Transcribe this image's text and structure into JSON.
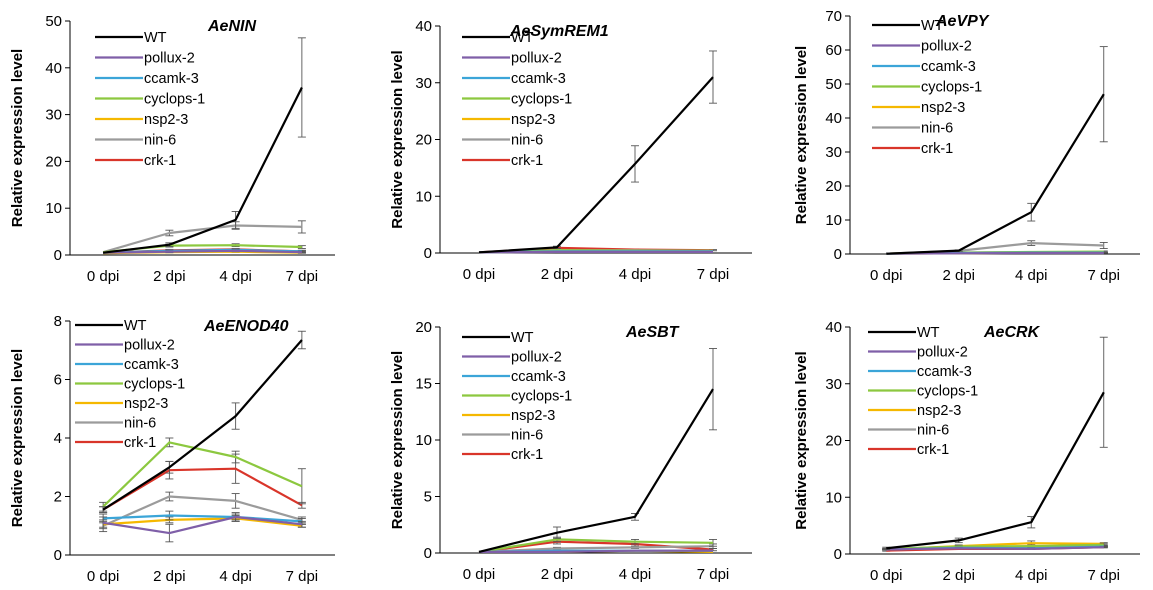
{
  "chart_data": [
    {
      "type": "line",
      "title": "AeNIN",
      "ylabel": "Relative expression level",
      "categories": [
        "0 dpi",
        "2 dpi",
        "4 dpi",
        "7 dpi"
      ],
      "ylim": [
        0,
        50
      ],
      "yticks": [
        0,
        10,
        20,
        30,
        40,
        50
      ],
      "legend_position": "top-left",
      "series": [
        {
          "name": "WT",
          "color": "#000000",
          "values": [
            0.5,
            2.2,
            7.5,
            35.8
          ],
          "errors": [
            0,
            0.4,
            1.8,
            10.6
          ]
        },
        {
          "name": "pollux-2",
          "color": "#7f5fa8",
          "values": [
            0.5,
            0.7,
            0.9,
            0.6
          ],
          "errors": [
            0,
            0.2,
            0.2,
            0.2
          ]
        },
        {
          "name": "ccamk-3",
          "color": "#3ba5d8",
          "values": [
            0.5,
            0.9,
            1.1,
            0.8
          ],
          "errors": [
            0,
            0.2,
            0.2,
            0.2
          ]
        },
        {
          "name": "cyclops-1",
          "color": "#8cc83f",
          "values": [
            0.6,
            2.0,
            2.1,
            1.7
          ],
          "errors": [
            0,
            0.3,
            0.3,
            0.3
          ]
        },
        {
          "name": "nsp2-3",
          "color": "#f5b800",
          "values": [
            0.4,
            0.6,
            0.7,
            0.5
          ],
          "errors": [
            0,
            0.1,
            0.1,
            0.1
          ]
        },
        {
          "name": "nin-6",
          "color": "#9b9b9b",
          "values": [
            0.6,
            4.7,
            6.3,
            6.0
          ],
          "errors": [
            0,
            0.6,
            0.8,
            1.3
          ]
        },
        {
          "name": "crk-1",
          "color": "#d9352a",
          "values": [
            0.5,
            1.0,
            1.2,
            0.8
          ],
          "errors": [
            0,
            0.2,
            0.2,
            0.2
          ]
        }
      ]
    },
    {
      "type": "line",
      "title": "AeSymREM1",
      "ylabel": "Relative expression level",
      "categories": [
        "0 dpi",
        "2 dpi",
        "4 dpi",
        "7 dpi"
      ],
      "ylim": [
        0,
        40
      ],
      "yticks": [
        0,
        10,
        20,
        30,
        40
      ],
      "legend_position": "top-left",
      "series": [
        {
          "name": "WT",
          "color": "#000000",
          "values": [
            0.1,
            1.0,
            15.7,
            31.0
          ],
          "errors": [
            0,
            0.2,
            3.2,
            4.6
          ]
        },
        {
          "name": "pollux-2",
          "color": "#7f5fa8",
          "values": [
            0.1,
            0.2,
            0.2,
            0.2
          ],
          "errors": [
            0,
            0,
            0,
            0
          ]
        },
        {
          "name": "ccamk-3",
          "color": "#3ba5d8",
          "values": [
            0.1,
            0.3,
            0.3,
            0.3
          ],
          "errors": [
            0,
            0,
            0,
            0
          ]
        },
        {
          "name": "cyclops-1",
          "color": "#8cc83f",
          "values": [
            0.1,
            0.5,
            0.4,
            0.4
          ],
          "errors": [
            0,
            0,
            0,
            0
          ]
        },
        {
          "name": "nsp2-3",
          "color": "#f5b800",
          "values": [
            0.1,
            0.3,
            0.3,
            0.3
          ],
          "errors": [
            0,
            0,
            0,
            0
          ]
        },
        {
          "name": "nin-6",
          "color": "#9b9b9b",
          "values": [
            0.1,
            0.5,
            0.5,
            0.4
          ],
          "errors": [
            0,
            0,
            0,
            0
          ]
        },
        {
          "name": "crk-1",
          "color": "#d9352a",
          "values": [
            0.1,
            0.9,
            0.6,
            0.5
          ],
          "errors": [
            0,
            0.1,
            0.1,
            0.1
          ]
        }
      ]
    },
    {
      "type": "line",
      "title": "AeVPY",
      "ylabel": "Relative expression level",
      "categories": [
        "0 dpi",
        "2 dpi",
        "4 dpi",
        "7 dpi"
      ],
      "ylim": [
        0,
        70
      ],
      "yticks": [
        0,
        10,
        20,
        30,
        40,
        50,
        60,
        70
      ],
      "legend_position": "top-left",
      "series": [
        {
          "name": "WT",
          "color": "#000000",
          "values": [
            0.1,
            1.0,
            12.3,
            47.0
          ],
          "errors": [
            0,
            0.2,
            2.6,
            14.0
          ]
        },
        {
          "name": "pollux-2",
          "color": "#7f5fa8",
          "values": [
            0.1,
            0.2,
            0.3,
            0.3
          ],
          "errors": [
            0,
            0,
            0.1,
            0.1
          ]
        },
        {
          "name": "ccamk-3",
          "color": "#3ba5d8",
          "values": [
            0.1,
            0.3,
            0.4,
            0.4
          ],
          "errors": [
            0,
            0,
            0.1,
            0.1
          ]
        },
        {
          "name": "cyclops-1",
          "color": "#8cc83f",
          "values": [
            0.1,
            0.4,
            0.6,
            0.7
          ],
          "errors": [
            0,
            0.1,
            0.1,
            0.2
          ]
        },
        {
          "name": "nsp2-3",
          "color": "#f5b800",
          "values": [
            0.1,
            0.2,
            0.4,
            0.4
          ],
          "errors": [
            0,
            0,
            0.1,
            0.1
          ]
        },
        {
          "name": "nin-6",
          "color": "#9b9b9b",
          "values": [
            0.1,
            0.9,
            3.2,
            2.5
          ],
          "errors": [
            0,
            0.2,
            0.7,
            0.9
          ]
        },
        {
          "name": "crk-1",
          "color": "#d9352a",
          "values": [
            0.1,
            0.4,
            0.5,
            0.5
          ],
          "errors": [
            0,
            0.1,
            0.1,
            0.1
          ]
        }
      ]
    },
    {
      "type": "line",
      "title": "AeENOD40",
      "ylabel": "Relative expression level",
      "categories": [
        "0 dpi",
        "2 dpi",
        "4 dpi",
        "7 dpi"
      ],
      "ylim": [
        0,
        8
      ],
      "yticks": [
        0,
        2,
        4,
        6,
        8
      ],
      "legend_position": "top-left",
      "series": [
        {
          "name": "WT",
          "color": "#000000",
          "values": [
            1.55,
            3.0,
            4.75,
            7.35
          ],
          "errors": [
            0.1,
            0.2,
            0.45,
            0.3
          ]
        },
        {
          "name": "pollux-2",
          "color": "#7f5fa8",
          "values": [
            1.1,
            0.75,
            1.3,
            1.05
          ],
          "errors": [
            0.2,
            0.3,
            0.15,
            0.1
          ]
        },
        {
          "name": "ccamk-3",
          "color": "#3ba5d8",
          "values": [
            1.25,
            1.35,
            1.3,
            1.15
          ],
          "errors": [
            0.15,
            0.15,
            0.1,
            0.1
          ]
        },
        {
          "name": "cyclops-1",
          "color": "#8cc83f",
          "values": [
            1.65,
            3.85,
            3.35,
            2.35
          ],
          "errors": [
            0.15,
            0.15,
            0.2,
            0.6
          ]
        },
        {
          "name": "nsp2-3",
          "color": "#f5b800",
          "values": [
            1.05,
            1.2,
            1.25,
            1.0
          ],
          "errors": [
            0.1,
            0.1,
            0.1,
            0.05
          ]
        },
        {
          "name": "nin-6",
          "color": "#9b9b9b",
          "values": [
            1.0,
            2.0,
            1.85,
            1.2
          ],
          "errors": [
            0.2,
            0.15,
            0.25,
            0.1
          ]
        },
        {
          "name": "crk-1",
          "color": "#d9352a",
          "values": [
            1.55,
            2.9,
            2.95,
            1.7
          ],
          "errors": [
            0.1,
            0.3,
            0.5,
            0.1
          ]
        }
      ]
    },
    {
      "type": "line",
      "title": "AeSBT",
      "ylabel": "Relative expression level",
      "categories": [
        "0 dpi",
        "2 dpi",
        "4 dpi",
        "7 dpi"
      ],
      "ylim": [
        0,
        20
      ],
      "yticks": [
        0,
        5,
        10,
        15,
        20
      ],
      "legend_position": "top-left",
      "series": [
        {
          "name": "WT",
          "color": "#000000",
          "values": [
            0.1,
            1.8,
            3.2,
            14.5
          ],
          "errors": [
            0,
            0.5,
            0.3,
            3.6
          ]
        },
        {
          "name": "pollux-2",
          "color": "#7f5fa8",
          "values": [
            0.1,
            0.1,
            0.2,
            0.2
          ],
          "errors": [
            0,
            0,
            0,
            0
          ]
        },
        {
          "name": "ccamk-3",
          "color": "#3ba5d8",
          "values": [
            0.1,
            0.2,
            0.2,
            0.2
          ],
          "errors": [
            0,
            0,
            0,
            0
          ]
        },
        {
          "name": "cyclops-1",
          "color": "#8cc83f",
          "values": [
            0.1,
            1.2,
            1.0,
            0.9
          ],
          "errors": [
            0,
            0.2,
            0.2,
            0.3
          ]
        },
        {
          "name": "nsp2-3",
          "color": "#f5b800",
          "values": [
            0.1,
            0.1,
            0.2,
            0.1
          ],
          "errors": [
            0,
            0,
            0,
            0
          ]
        },
        {
          "name": "nin-6",
          "color": "#9b9b9b",
          "values": [
            0.1,
            0.4,
            0.5,
            0.6
          ],
          "errors": [
            0,
            0.1,
            0.1,
            0.2
          ]
        },
        {
          "name": "crk-1",
          "color": "#d9352a",
          "values": [
            0.1,
            1.0,
            0.8,
            0.3
          ],
          "errors": [
            0,
            0.2,
            0.2,
            0.1
          ]
        }
      ]
    },
    {
      "type": "line",
      "title": "AeCRK",
      "ylabel": "Relative expression level",
      "categories": [
        "0 dpi",
        "2 dpi",
        "4 dpi",
        "7 dpi"
      ],
      "ylim": [
        0,
        40
      ],
      "yticks": [
        0,
        10,
        20,
        30,
        40
      ],
      "legend_position": "top-left",
      "series": [
        {
          "name": "WT",
          "color": "#000000",
          "values": [
            1.0,
            2.4,
            5.6,
            28.5
          ],
          "errors": [
            0.2,
            0.4,
            1.0,
            9.7
          ]
        },
        {
          "name": "pollux-2",
          "color": "#7f5fa8",
          "values": [
            0.8,
            1.0,
            0.9,
            1.2
          ],
          "errors": [
            0.1,
            0.1,
            0.1,
            0.1
          ]
        },
        {
          "name": "ccamk-3",
          "color": "#3ba5d8",
          "values": [
            0.8,
            1.1,
            1.0,
            1.3
          ],
          "errors": [
            0.1,
            0.1,
            0.1,
            0.1
          ]
        },
        {
          "name": "cyclops-1",
          "color": "#8cc83f",
          "values": [
            0.9,
            1.3,
            1.4,
            1.6
          ],
          "errors": [
            0.1,
            0.2,
            0.2,
            0.2
          ]
        },
        {
          "name": "nsp2-3",
          "color": "#f5b800",
          "values": [
            0.8,
            1.4,
            1.9,
            1.8
          ],
          "errors": [
            0.1,
            0.2,
            0.4,
            0.2
          ]
        },
        {
          "name": "nin-6",
          "color": "#9b9b9b",
          "values": [
            0.8,
            1.2,
            1.2,
            1.4
          ],
          "errors": [
            0.1,
            0.1,
            0.1,
            0.1
          ]
        },
        {
          "name": "crk-1",
          "color": "#d9352a",
          "values": [
            0.6,
            0.9,
            0.9,
            1.2
          ],
          "errors": [
            0.1,
            0.1,
            0.1,
            0.1
          ]
        }
      ]
    }
  ]
}
